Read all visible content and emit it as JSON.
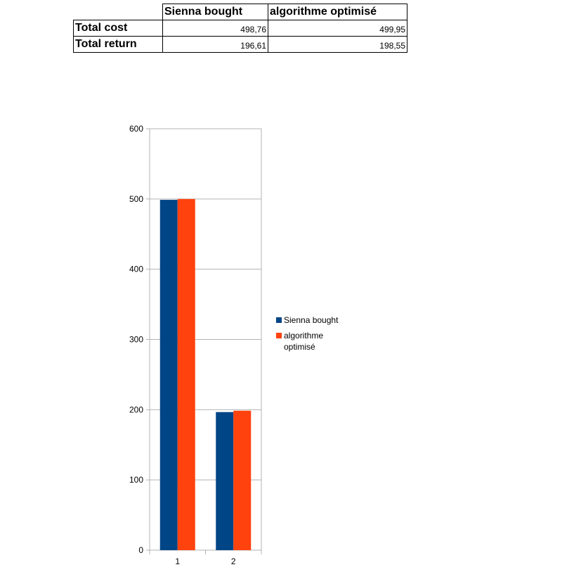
{
  "table": {
    "columns": [
      "Sienna bought",
      "algorithme optimisé"
    ],
    "rows": [
      {
        "label": "Total cost",
        "values": [
          "498,76",
          "499,95"
        ]
      },
      {
        "label": "Total return",
        "values": [
          "196,61",
          "198,55"
        ]
      }
    ]
  },
  "chart_data": {
    "type": "bar",
    "categories": [
      "1",
      "2"
    ],
    "series": [
      {
        "name": "Sienna bought",
        "values": [
          498.76,
          196.61
        ],
        "color": "#004586"
      },
      {
        "name": "algorithme optimisé",
        "values": [
          499.95,
          198.55
        ],
        "color": "#ff420e"
      }
    ],
    "ylim": [
      0,
      600
    ],
    "yticks": [
      "0",
      "100",
      "200",
      "300",
      "400",
      "500",
      "600"
    ],
    "grid": true,
    "legend": "right"
  }
}
